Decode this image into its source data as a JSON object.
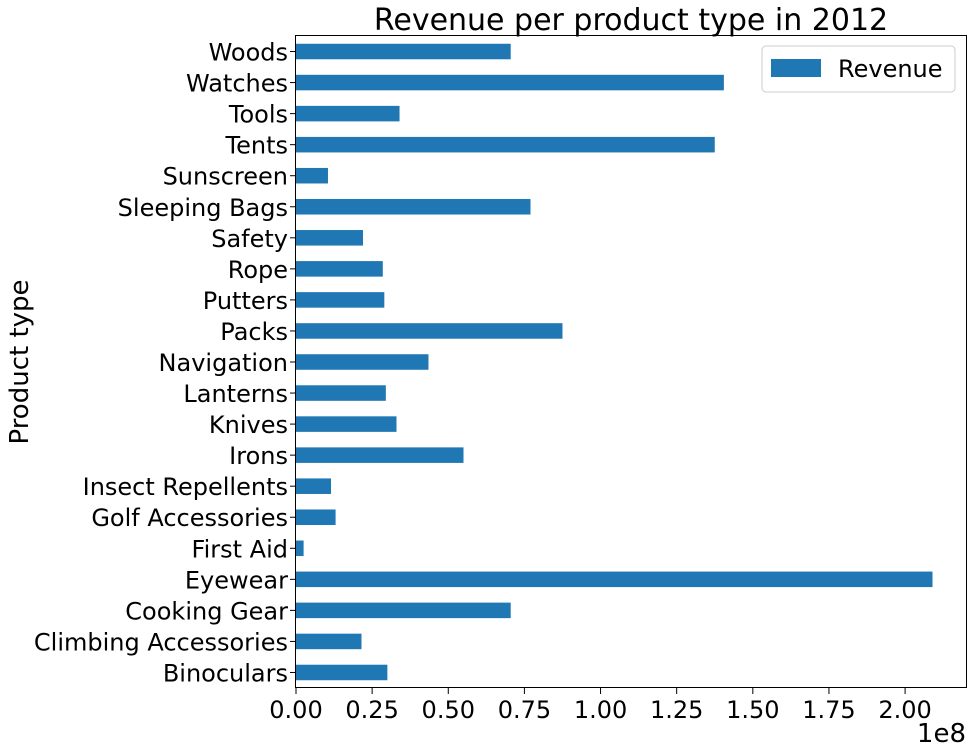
{
  "chart_data": {
    "type": "bar",
    "orientation": "horizontal",
    "title": "Revenue per product type in 2012",
    "ylabel": "Product type",
    "xlabel": "",
    "offset_label": "1e8",
    "xlim": [
      0,
      2.2
    ],
    "x_ticks": [
      0.0,
      0.25,
      0.5,
      0.75,
      1.0,
      1.25,
      1.5,
      1.75,
      2.0
    ],
    "x_tick_labels": [
      "0.00",
      "0.25",
      "0.50",
      "0.75",
      "1.00",
      "1.25",
      "1.50",
      "1.75",
      "2.00"
    ],
    "value_scale": 100000000,
    "categories": [
      "Binoculars",
      "Climbing Accessories",
      "Cooking Gear",
      "Eyewear",
      "First Aid",
      "Golf Accessories",
      "Insect Repellents",
      "Irons",
      "Knives",
      "Lanterns",
      "Navigation",
      "Packs",
      "Putters",
      "Rope",
      "Safety",
      "Sleeping Bags",
      "Sunscreen",
      "Tents",
      "Tools",
      "Watches",
      "Woods"
    ],
    "series": [
      {
        "name": "Revenue",
        "color": "#1f77b4",
        "values": [
          0.3,
          0.215,
          0.705,
          2.09,
          0.025,
          0.13,
          0.115,
          0.55,
          0.33,
          0.295,
          0.435,
          0.875,
          0.29,
          0.285,
          0.22,
          0.77,
          0.105,
          1.375,
          0.34,
          1.405,
          0.705
        ]
      }
    ],
    "legend": {
      "position": "top-right",
      "entries": [
        "Revenue"
      ]
    },
    "grid": false
  }
}
